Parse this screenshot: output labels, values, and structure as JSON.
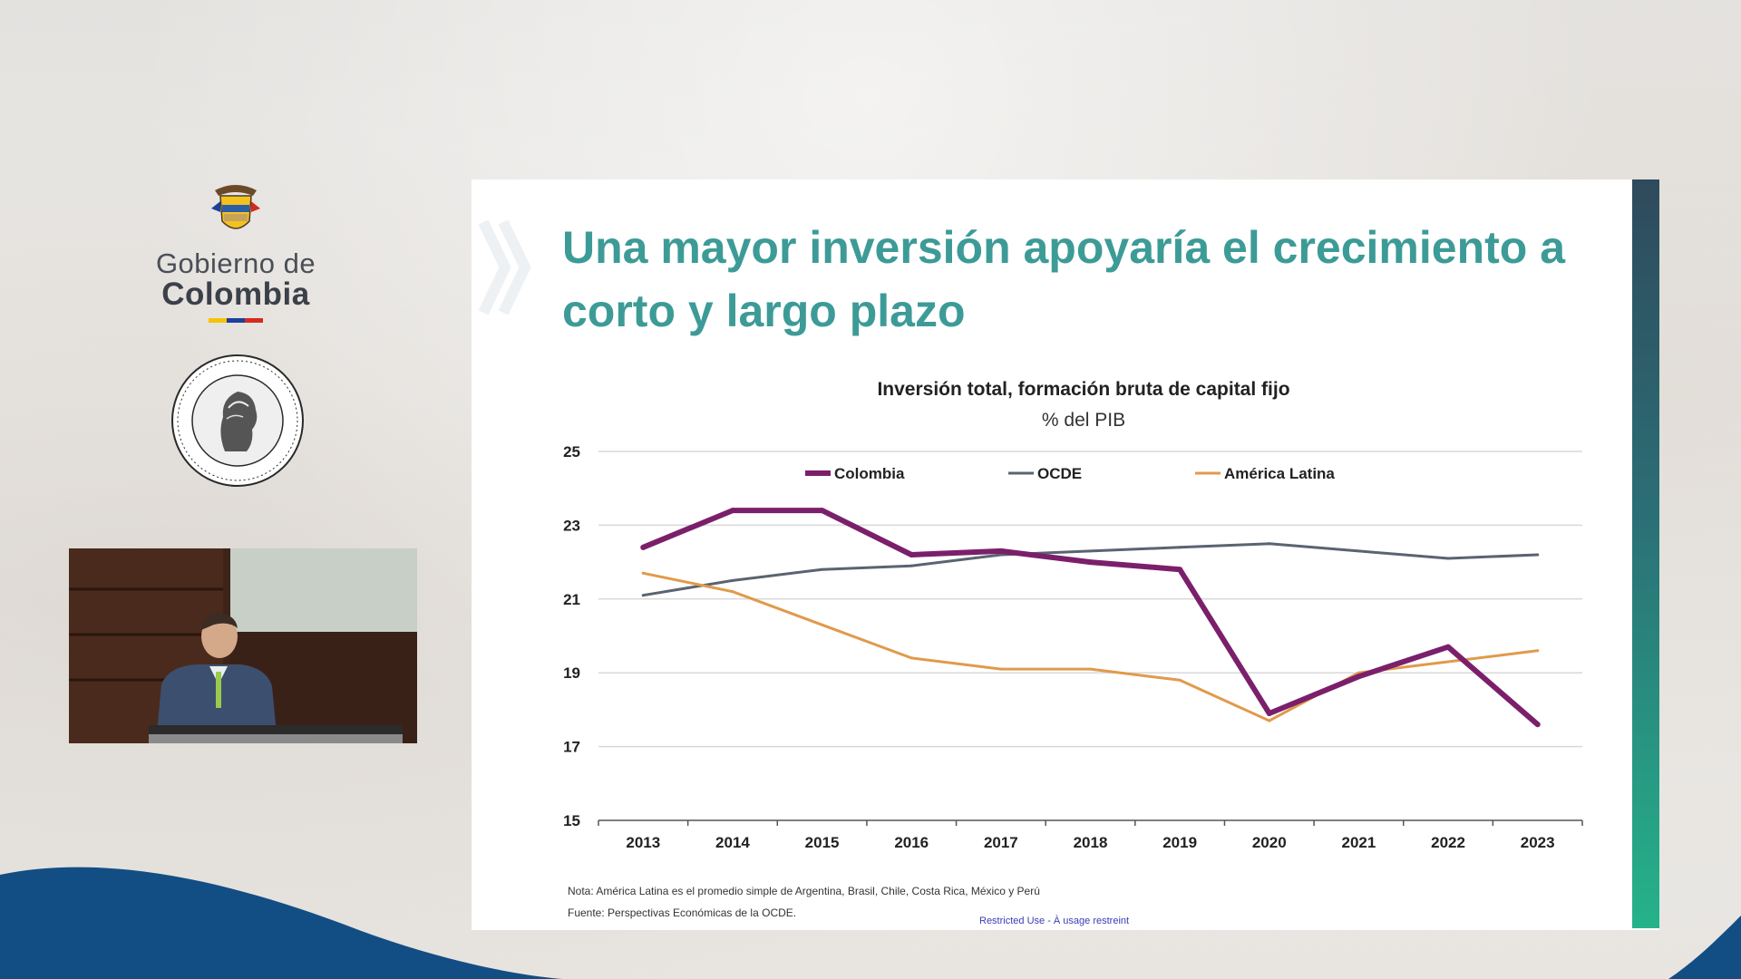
{
  "logos": {
    "gov_line1": "Gobierno de",
    "gov_line2": "Colombia",
    "flag_colors": [
      "#f5c400",
      "#1f3f9e",
      "#d52b1e"
    ]
  },
  "slide": {
    "title": "Una mayor inversión apoyaría el crecimiento a corto y largo plazo",
    "note": "Nota: América Latina es el promedio simple de Argentina, Brasil, Chile, Costa Rica, México y Perú",
    "source": "Fuente: Perspectivas Económicas de la OCDE.",
    "classification": "Restricted Use - À usage restreint"
  },
  "chart_data": {
    "type": "line",
    "title": "Inversión total, formación bruta de capital fijo",
    "subtitle": "% del PIB",
    "x": [
      "2013",
      "2014",
      "2015",
      "2016",
      "2017",
      "2018",
      "2019",
      "2020",
      "2021",
      "2022",
      "2023"
    ],
    "ylim": [
      15,
      25
    ],
    "yticks": [
      15,
      17,
      19,
      21,
      23,
      25
    ],
    "grid": true,
    "legend_position": "top",
    "series": [
      {
        "name": "Colombia",
        "color": "#7b1f6b",
        "values": [
          22.4,
          23.4,
          23.4,
          22.2,
          22.3,
          22.0,
          21.8,
          17.9,
          18.9,
          19.7,
          17.6
        ]
      },
      {
        "name": "OCDE",
        "color": "#5a6470",
        "values": [
          21.1,
          21.5,
          21.8,
          21.9,
          22.2,
          22.3,
          22.4,
          22.5,
          22.3,
          22.1,
          22.2
        ]
      },
      {
        "name": "América Latina",
        "color": "#e09a4c",
        "values": [
          21.7,
          21.2,
          20.3,
          19.4,
          19.1,
          19.1,
          18.8,
          17.7,
          19.0,
          19.3,
          19.6
        ]
      }
    ]
  }
}
